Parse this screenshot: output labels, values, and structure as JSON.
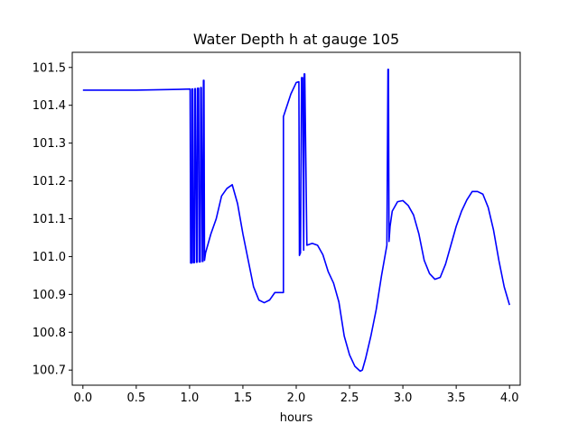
{
  "chart_data": {
    "type": "line",
    "title": "Water Depth h at gauge 105",
    "xlabel": "hours",
    "ylabel": "",
    "xlim": [
      -0.1,
      4.1
    ],
    "ylim": [
      100.66,
      101.54
    ],
    "xticks": [
      0.0,
      0.5,
      1.0,
      1.5,
      2.0,
      2.5,
      3.0,
      3.5,
      4.0
    ],
    "xtick_labels": [
      "0.0",
      "0.5",
      "1.0",
      "1.5",
      "2.0",
      "2.5",
      "3.0",
      "3.5",
      "4.0"
    ],
    "yticks": [
      100.7,
      100.8,
      100.9,
      101.0,
      101.1,
      101.2,
      101.3,
      101.4,
      101.5
    ],
    "ytick_labels": [
      "100.7",
      "100.8",
      "100.9",
      "101.0",
      "101.1",
      "101.2",
      "101.3",
      "101.4",
      "101.5"
    ],
    "grid": false,
    "series": [
      {
        "color": "#0000ff",
        "x": [
          0.0,
          0.5,
          0.9,
          1.0,
          1.005,
          1.01,
          1.02,
          1.022,
          1.03,
          1.035,
          1.045,
          1.05,
          1.055,
          1.065,
          1.07,
          1.075,
          1.085,
          1.09,
          1.1,
          1.105,
          1.11,
          1.12,
          1.125,
          1.13,
          1.135,
          1.14,
          1.15,
          1.2,
          1.25,
          1.3,
          1.35,
          1.4,
          1.45,
          1.5,
          1.55,
          1.6,
          1.65,
          1.7,
          1.75,
          1.8,
          1.85,
          1.88,
          1.88,
          1.95,
          2.0,
          2.02,
          2.025,
          2.03,
          2.04,
          2.05,
          2.055,
          2.06,
          2.07,
          2.075,
          2.08,
          2.1,
          2.15,
          2.2,
          2.25,
          2.3,
          2.35,
          2.4,
          2.45,
          2.5,
          2.55,
          2.6,
          2.62,
          2.65,
          2.7,
          2.75,
          2.8,
          2.85,
          2.86,
          2.865,
          2.87,
          2.875,
          2.88,
          2.9,
          2.95,
          3.0,
          3.05,
          3.1,
          3.15,
          3.2,
          3.25,
          3.3,
          3.35,
          3.4,
          3.45,
          3.5,
          3.55,
          3.6,
          3.65,
          3.7,
          3.75,
          3.8,
          3.85,
          3.9,
          3.95,
          4.0
        ],
        "y": [
          101.44,
          101.44,
          101.442,
          101.443,
          101.443,
          100.983,
          100.983,
          101.443,
          101.443,
          100.984,
          100.984,
          101.444,
          101.444,
          100.985,
          100.985,
          101.445,
          101.445,
          100.986,
          100.986,
          101.447,
          101.447,
          100.987,
          100.987,
          101.466,
          101.466,
          100.99,
          101.01,
          101.06,
          101.1,
          101.16,
          101.18,
          101.19,
          101.14,
          101.06,
          100.99,
          100.92,
          100.885,
          100.878,
          100.885,
          100.905,
          100.905,
          100.905,
          101.37,
          101.43,
          101.46,
          101.462,
          101.462,
          101.003,
          101.01,
          101.473,
          101.473,
          101.473,
          101.017,
          101.483,
          101.483,
          101.03,
          101.035,
          101.03,
          101.005,
          100.96,
          100.93,
          100.88,
          100.79,
          100.74,
          100.71,
          100.697,
          100.7,
          100.73,
          100.79,
          100.86,
          100.95,
          101.03,
          101.495,
          101.495,
          101.04,
          101.06,
          101.08,
          101.12,
          101.145,
          101.148,
          101.135,
          101.11,
          101.06,
          100.99,
          100.955,
          100.94,
          100.945,
          100.98,
          101.03,
          101.08,
          101.12,
          101.15,
          101.172,
          101.172,
          101.165,
          101.13,
          101.07,
          100.99,
          100.92,
          100.872
        ]
      }
    ]
  }
}
